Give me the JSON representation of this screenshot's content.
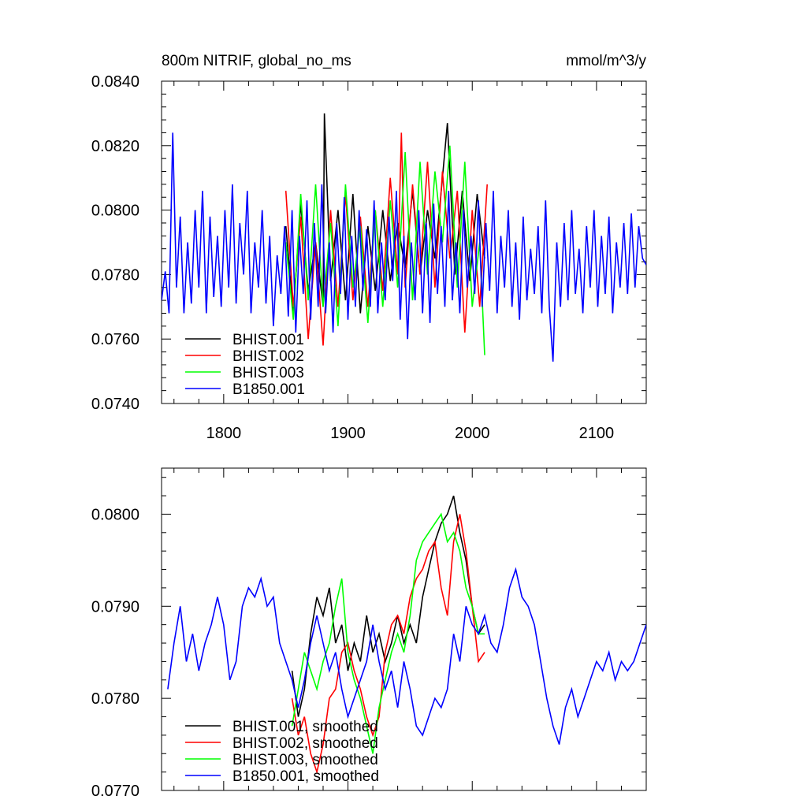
{
  "chart_data": [
    {
      "type": "line",
      "title_left": "800m NITRIF, global_no_ms",
      "title_right": "mmol/m^3/y",
      "xlim": [
        1750,
        2140
      ],
      "ylim": [
        0.074,
        0.084
      ],
      "y_ticks": [
        0.074,
        0.076,
        0.078,
        0.08,
        0.082,
        0.084
      ],
      "y_tick_labels": [
        "0.0740",
        "0.0760",
        "0.0780",
        "0.0800",
        "0.0820",
        "0.0840"
      ],
      "x_ticks": [
        1800,
        1900,
        2000,
        2100
      ],
      "x_tick_labels": [
        "1800",
        "1900",
        "2000",
        "2100"
      ],
      "legend_position": "bottom-left",
      "series": [
        {
          "name": "BHIST.001",
          "color": "#000000",
          "x": [
            1850,
            1856,
            1862,
            1868,
            1874,
            1880,
            1881,
            1886,
            1892,
            1898,
            1904,
            1910,
            1916,
            1922,
            1928,
            1934,
            1940,
            1946,
            1952,
            1958,
            1964,
            1970,
            1976,
            1980,
            1986,
            1992,
            1998,
            2004,
            2010
          ],
          "y": [
            0.0795,
            0.0768,
            0.0802,
            0.0775,
            0.079,
            0.077,
            0.083,
            0.0778,
            0.08,
            0.0772,
            0.0805,
            0.0768,
            0.0795,
            0.0775,
            0.08,
            0.0778,
            0.0796,
            0.0782,
            0.0806,
            0.078,
            0.08,
            0.0785,
            0.081,
            0.0827,
            0.078,
            0.0806,
            0.0778,
            0.0805,
            0.0785
          ]
        },
        {
          "name": "BHIST.002",
          "color": "#ff0000",
          "x": [
            1850,
            1856,
            1862,
            1868,
            1874,
            1880,
            1886,
            1892,
            1898,
            1904,
            1910,
            1916,
            1922,
            1928,
            1934,
            1940,
            1943,
            1946,
            1952,
            1958,
            1964,
            1970,
            1976,
            1982,
            1988,
            1994,
            2000,
            2006,
            2012
          ],
          "y": [
            0.0806,
            0.077,
            0.0798,
            0.076,
            0.079,
            0.0758,
            0.08,
            0.077,
            0.0805,
            0.0772,
            0.0798,
            0.077,
            0.08,
            0.0775,
            0.081,
            0.078,
            0.0824,
            0.0776,
            0.0808,
            0.078,
            0.0815,
            0.0776,
            0.0812,
            0.0785,
            0.0806,
            0.0762,
            0.08,
            0.077,
            0.0808
          ]
        },
        {
          "name": "BHIST.003",
          "color": "#00ff00",
          "x": [
            1850,
            1856,
            1862,
            1868,
            1874,
            1880,
            1886,
            1892,
            1898,
            1904,
            1910,
            1916,
            1922,
            1928,
            1934,
            1940,
            1946,
            1952,
            1958,
            1964,
            1970,
            1976,
            1982,
            1988,
            1994,
            2000,
            2006,
            2010
          ],
          "y": [
            0.079,
            0.0766,
            0.0805,
            0.0772,
            0.0808,
            0.077,
            0.0796,
            0.0764,
            0.0808,
            0.0776,
            0.0795,
            0.0765,
            0.08,
            0.077,
            0.0803,
            0.0776,
            0.0818,
            0.0772,
            0.0815,
            0.078,
            0.0812,
            0.079,
            0.082,
            0.0776,
            0.0815,
            0.077,
            0.079,
            0.0755
          ]
        },
        {
          "name": "B1850.001",
          "color": "#0000ff",
          "x": [
            1750,
            1753,
            1756,
            1759,
            1762,
            1765,
            1768,
            1771,
            1774,
            1777,
            1780,
            1783,
            1786,
            1789,
            1792,
            1795,
            1798,
            1801,
            1804,
            1807,
            1810,
            1813,
            1816,
            1819,
            1822,
            1825,
            1828,
            1831,
            1834,
            1837,
            1840,
            1843,
            1846,
            1849,
            1852,
            1855,
            1858,
            1861,
            1864,
            1867,
            1870,
            1873,
            1876,
            1879,
            1882,
            1885,
            1888,
            1891,
            1894,
            1897,
            1900,
            1903,
            1906,
            1909,
            1912,
            1915,
            1918,
            1921,
            1924,
            1927,
            1930,
            1933,
            1936,
            1939,
            1942,
            1945,
            1948,
            1951,
            1954,
            1957,
            1960,
            1963,
            1966,
            1969,
            1972,
            1975,
            1978,
            1981,
            1984,
            1987,
            1990,
            1993,
            1996,
            1999,
            2002,
            2005,
            2008,
            2011,
            2014,
            2017,
            2020,
            2023,
            2026,
            2029,
            2032,
            2035,
            2038,
            2041,
            2044,
            2047,
            2050,
            2053,
            2056,
            2059,
            2062,
            2065,
            2068,
            2071,
            2074,
            2077,
            2080,
            2083,
            2086,
            2089,
            2092,
            2095,
            2098,
            2101,
            2104,
            2107,
            2110,
            2113,
            2116,
            2119,
            2122,
            2125,
            2128,
            2131,
            2134,
            2137,
            2140
          ],
          "y": [
            0.0772,
            0.0781,
            0.0768,
            0.0824,
            0.0776,
            0.0798,
            0.0768,
            0.079,
            0.0771,
            0.08,
            0.0776,
            0.0806,
            0.0768,
            0.0798,
            0.0773,
            0.0792,
            0.077,
            0.08,
            0.0776,
            0.0808,
            0.0771,
            0.0796,
            0.078,
            0.0806,
            0.0768,
            0.079,
            0.0776,
            0.08,
            0.0771,
            0.0792,
            0.0764,
            0.0786,
            0.0774,
            0.0795,
            0.0767,
            0.08,
            0.0762,
            0.0792,
            0.0774,
            0.0803,
            0.0766,
            0.0796,
            0.077,
            0.0808,
            0.0768,
            0.079,
            0.0762,
            0.0796,
            0.0774,
            0.0804,
            0.0766,
            0.0792,
            0.077,
            0.08,
            0.0775,
            0.0794,
            0.077,
            0.0803,
            0.0768,
            0.079,
            0.0772,
            0.0798,
            0.0778,
            0.0806,
            0.0766,
            0.0792,
            0.076,
            0.079,
            0.0772,
            0.08,
            0.0768,
            0.0796,
            0.0765,
            0.0802,
            0.0774,
            0.0795,
            0.077,
            0.0806,
            0.0772,
            0.079,
            0.0768,
            0.08,
            0.0776,
            0.0792,
            0.0774,
            0.0803,
            0.077,
            0.0796,
            0.0775,
            0.0806,
            0.0768,
            0.0792,
            0.0776,
            0.08,
            0.077,
            0.079,
            0.0766,
            0.0798,
            0.0772,
            0.0788,
            0.0774,
            0.0795,
            0.0768,
            0.0803,
            0.077,
            0.0753,
            0.079,
            0.077,
            0.0796,
            0.0772,
            0.08,
            0.0774,
            0.0788,
            0.0768,
            0.0795,
            0.0776,
            0.08,
            0.077,
            0.0792,
            0.0774,
            0.0798,
            0.0768,
            0.079,
            0.0776,
            0.0796,
            0.0774,
            0.0799,
            0.0776,
            0.0795,
            0.0785,
            0.0783
          ]
        }
      ]
    },
    {
      "type": "line",
      "xlim": [
        1750,
        2140
      ],
      "ylim": [
        0.077,
        0.0805
      ],
      "y_ticks": [
        0.077,
        0.078,
        0.079,
        0.08
      ],
      "y_tick_labels": [
        "0.0770",
        "0.0780",
        "0.0790",
        "0.0800"
      ],
      "x_ticks": [
        1800,
        1900,
        2000,
        2100
      ],
      "legend_position": "bottom-left",
      "series": [
        {
          "name": "BHIST.001, smoothed",
          "color": "#000000",
          "x": [
            1855,
            1860,
            1865,
            1870,
            1875,
            1880,
            1885,
            1890,
            1895,
            1900,
            1905,
            1910,
            1915,
            1920,
            1925,
            1930,
            1935,
            1940,
            1945,
            1950,
            1955,
            1960,
            1965,
            1970,
            1975,
            1980,
            1985,
            1990,
            1995,
            2000,
            2005,
            2010
          ],
          "y": [
            0.0783,
            0.0778,
            0.0781,
            0.0787,
            0.0791,
            0.0789,
            0.0792,
            0.0786,
            0.0788,
            0.0783,
            0.0786,
            0.0784,
            0.0789,
            0.0785,
            0.0787,
            0.0784,
            0.0786,
            0.0789,
            0.0786,
            0.0788,
            0.0786,
            0.0791,
            0.0794,
            0.0797,
            0.0799,
            0.08,
            0.0802,
            0.0798,
            0.0795,
            0.079,
            0.0787,
            0.0788
          ]
        },
        {
          "name": "BHIST.002, smoothed",
          "color": "#ff0000",
          "x": [
            1855,
            1860,
            1865,
            1870,
            1875,
            1880,
            1885,
            1890,
            1895,
            1900,
            1905,
            1910,
            1915,
            1920,
            1925,
            1930,
            1935,
            1940,
            1945,
            1950,
            1955,
            1960,
            1965,
            1970,
            1975,
            1980,
            1985,
            1990,
            1995,
            2000,
            2005,
            2010
          ],
          "y": [
            0.078,
            0.0776,
            0.0778,
            0.0774,
            0.0772,
            0.0775,
            0.078,
            0.0781,
            0.0785,
            0.0786,
            0.0783,
            0.0781,
            0.0778,
            0.0776,
            0.0778,
            0.0785,
            0.0788,
            0.0789,
            0.0787,
            0.0791,
            0.0793,
            0.0794,
            0.0796,
            0.0797,
            0.0792,
            0.0789,
            0.0797,
            0.08,
            0.0796,
            0.079,
            0.0784,
            0.0785
          ]
        },
        {
          "name": "BHIST.003, smoothed",
          "color": "#00ff00",
          "x": [
            1855,
            1860,
            1865,
            1870,
            1875,
            1880,
            1885,
            1890,
            1895,
            1900,
            1905,
            1910,
            1915,
            1920,
            1925,
            1930,
            1935,
            1940,
            1945,
            1950,
            1955,
            1960,
            1965,
            1970,
            1975,
            1980,
            1985,
            1990,
            1995,
            2000,
            2005,
            2010
          ],
          "y": [
            0.0777,
            0.0781,
            0.0785,
            0.0783,
            0.0781,
            0.0784,
            0.0786,
            0.079,
            0.0793,
            0.0785,
            0.0782,
            0.078,
            0.0777,
            0.0774,
            0.0779,
            0.0782,
            0.0785,
            0.0787,
            0.0785,
            0.0789,
            0.0795,
            0.0797,
            0.0798,
            0.0799,
            0.08,
            0.0797,
            0.0798,
            0.0796,
            0.0792,
            0.079,
            0.0787,
            0.0787
          ]
        },
        {
          "name": "B1850.001, smoothed",
          "color": "#0000ff",
          "x": [
            1755,
            1760,
            1765,
            1770,
            1775,
            1780,
            1785,
            1790,
            1795,
            1800,
            1805,
            1810,
            1815,
            1820,
            1825,
            1830,
            1835,
            1840,
            1845,
            1850,
            1855,
            1860,
            1865,
            1870,
            1875,
            1880,
            1885,
            1890,
            1895,
            1900,
            1905,
            1910,
            1915,
            1920,
            1925,
            1930,
            1935,
            1940,
            1945,
            1950,
            1955,
            1960,
            1965,
            1970,
            1975,
            1980,
            1985,
            1990,
            1995,
            2000,
            2005,
            2010,
            2015,
            2020,
            2025,
            2030,
            2035,
            2040,
            2045,
            2050,
            2055,
            2060,
            2065,
            2070,
            2075,
            2080,
            2085,
            2090,
            2095,
            2100,
            2105,
            2110,
            2115,
            2120,
            2125,
            2130,
            2135,
            2140
          ],
          "y": [
            0.0781,
            0.0786,
            0.079,
            0.0784,
            0.0787,
            0.0783,
            0.0786,
            0.0788,
            0.0791,
            0.0788,
            0.0782,
            0.0784,
            0.079,
            0.0792,
            0.0791,
            0.0793,
            0.079,
            0.0791,
            0.0786,
            0.0784,
            0.0782,
            0.0779,
            0.0782,
            0.0786,
            0.0789,
            0.0786,
            0.0783,
            0.0785,
            0.0781,
            0.0778,
            0.078,
            0.0782,
            0.0784,
            0.0788,
            0.0784,
            0.0781,
            0.0783,
            0.0779,
            0.0784,
            0.0781,
            0.0777,
            0.0776,
            0.0778,
            0.078,
            0.0779,
            0.0781,
            0.0787,
            0.0784,
            0.079,
            0.0788,
            0.0787,
            0.0789,
            0.0786,
            0.0785,
            0.0788,
            0.0792,
            0.0794,
            0.0791,
            0.079,
            0.0788,
            0.0784,
            0.078,
            0.0777,
            0.0775,
            0.0779,
            0.0781,
            0.0778,
            0.078,
            0.0782,
            0.0784,
            0.0783,
            0.0785,
            0.0782,
            0.0784,
            0.0783,
            0.0784,
            0.0786,
            0.0788
          ]
        }
      ]
    }
  ]
}
